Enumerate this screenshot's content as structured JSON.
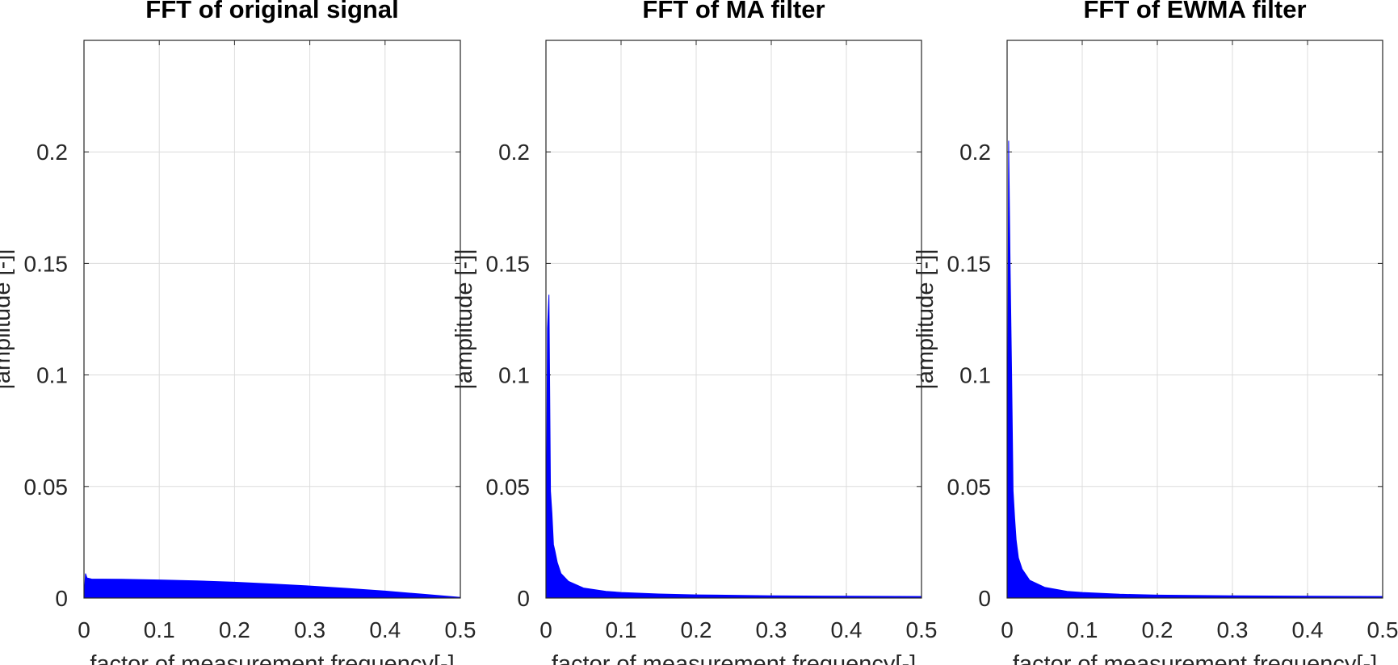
{
  "chart_data": [
    {
      "type": "area",
      "title": "FFT of original signal",
      "xlabel": "factor of measurement frequency[-]",
      "ylabel": "|amplitude [-]|",
      "xlim": [
        0,
        0.5
      ],
      "ylim": [
        0,
        0.25
      ],
      "xticks": [
        "0",
        "0.1",
        "0.2",
        "0.3",
        "0.4",
        "0.5"
      ],
      "yticks": [
        "0",
        "0.05",
        "0.1",
        "0.15",
        "0.2"
      ],
      "grid": true,
      "color": "#0000ff",
      "series": [
        {
          "x": [
            0,
            0.002,
            0.004,
            0.01,
            0.05,
            0.1,
            0.15,
            0.2,
            0.25,
            0.3,
            0.35,
            0.4,
            0.45,
            0.5
          ],
          "values": [
            0.0,
            0.011,
            0.009,
            0.0085,
            0.0084,
            0.0081,
            0.0077,
            0.0071,
            0.0063,
            0.0054,
            0.0043,
            0.0031,
            0.0017,
            0.0003
          ]
        }
      ]
    },
    {
      "type": "area",
      "title": "FFT of MA filter",
      "xlabel": "factor of measurement frequency[-]",
      "ylabel": "|amplitude [-]|",
      "xlim": [
        0,
        0.5
      ],
      "ylim": [
        0,
        0.25
      ],
      "xticks": [
        "0",
        "0.1",
        "0.2",
        "0.3",
        "0.4",
        "0.5"
      ],
      "yticks": [
        "0",
        "0.05",
        "0.1",
        "0.15",
        "0.2"
      ],
      "grid": true,
      "color": "#0000ff",
      "series": [
        {
          "x": [
            0,
            0.002,
            0.004,
            0.006,
            0.008,
            0.01,
            0.012,
            0.015,
            0.02,
            0.03,
            0.05,
            0.08,
            0.1,
            0.15,
            0.2,
            0.3,
            0.4,
            0.5
          ],
          "values": [
            0.0,
            0.121,
            0.136,
            0.048,
            0.038,
            0.024,
            0.021,
            0.016,
            0.011,
            0.0075,
            0.0045,
            0.003,
            0.0025,
            0.0018,
            0.0014,
            0.001,
            0.0008,
            0.0007
          ]
        }
      ]
    },
    {
      "type": "area",
      "title": "FFT of EWMA filter",
      "xlabel": "factor of measurement frequency[-]",
      "ylabel": "|amplitude [-]|",
      "xlim": [
        0,
        0.5
      ],
      "ylim": [
        0,
        0.25
      ],
      "xticks": [
        "0",
        "0.1",
        "0.2",
        "0.3",
        "0.4",
        "0.5"
      ],
      "yticks": [
        "0",
        "0.05",
        "0.1",
        "0.15",
        "0.2"
      ],
      "grid": true,
      "color": "#0000ff",
      "series": [
        {
          "x": [
            0,
            0.002,
            0.004,
            0.006,
            0.008,
            0.01,
            0.012,
            0.015,
            0.02,
            0.03,
            0.05,
            0.08,
            0.1,
            0.15,
            0.2,
            0.3,
            0.4,
            0.5
          ],
          "values": [
            0.0,
            0.205,
            0.149,
            0.1,
            0.048,
            0.036,
            0.026,
            0.018,
            0.013,
            0.008,
            0.0048,
            0.003,
            0.0025,
            0.0017,
            0.0013,
            0.001,
            0.0008,
            0.0007
          ]
        }
      ]
    }
  ]
}
